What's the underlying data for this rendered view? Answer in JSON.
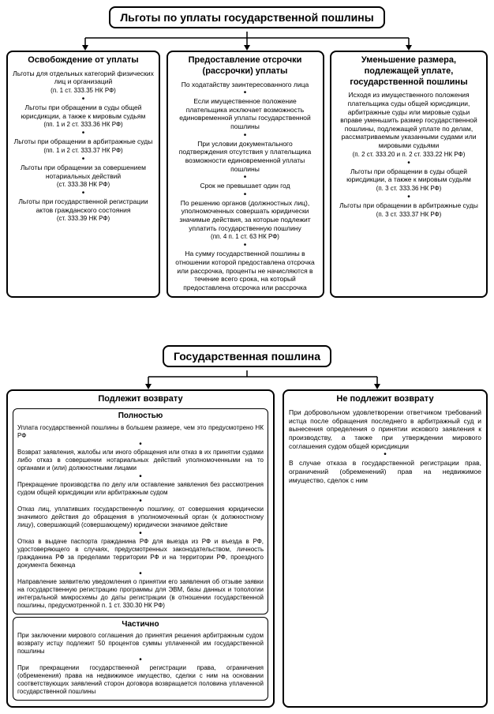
{
  "colors": {
    "stroke": "#000000",
    "bg": "#ffffff"
  },
  "font": {
    "title_size": 14,
    "heading_size": 11,
    "body_size": 8.5,
    "ref_size": 8
  },
  "diagram1": {
    "title": "Льготы по уплаты государственной пошлины",
    "col1": {
      "heading": "Освобождение от уплаты",
      "items": [
        {
          "text": "Льготы для отдельных категорий физических лиц и организаций",
          "ref": "(п. 1 ст. 333.35 НК РФ)"
        },
        {
          "text": "Льготы при обращении в суды общей юрисдикции, а также к мировым судьям",
          "ref": "(пп. 1 и 2 ст. 333.36 НК РФ)"
        },
        {
          "text": "Льготы при обращении в арбитражные суды",
          "ref": "(пп. 1 и 2 ст. 333.37 НК РФ)"
        },
        {
          "text": "Льготы при обращении за совершением нотариальных действий",
          "ref": "(ст. 333.38 НК РФ)"
        },
        {
          "text": "Льготы при государственной регистрации актов гражданского состояния",
          "ref": "(ст. 333.39 НК РФ)"
        }
      ]
    },
    "col2": {
      "heading": "Предоставление отсрочки (рассрочки) уплаты",
      "items": [
        {
          "text": "По ходатайству заинтересованного лица"
        },
        {
          "text": "Если имущественное положение плательщика исключает возможность единовременной уплаты государственной пошлины"
        },
        {
          "text": "При условии документального подтверждения отсутствия у плательщика возможности единовременной уплаты пошлины"
        },
        {
          "text": "Срок не превышает один год"
        },
        {
          "text": "По решению органов (должностных лиц), уполномоченных совершать юридически значимые действия, за которые подлежит уплатить государственную пошлину",
          "ref": "(пп. 4 п. 1 ст. 63 НК РФ)"
        },
        {
          "text": "На сумму государственной пошлины в отношении которой предоставлена отсрочка или рассрочка, проценты не начисляются в течение всего срока, на который предоставлена отсрочка или рассрочка"
        }
      ]
    },
    "col3": {
      "heading": "Уменьшение размера, подлежащей уплате, государственной пошлины",
      "items": [
        {
          "text": "Исходя из имущественного положения плательщика суды общей юрисдикции, арбитражные суды или мировые судьи вправе уменьшить размер государственной пошлины, подлежащей уплате по делам, рассматриваемым указанными судами или мировыми судьями",
          "ref": "(п. 2 ст. 333.20 и п. 2 ст. 333.22 НК РФ)"
        },
        {
          "text": "Льготы при обращении в суды общей юрисдикции, а также к мировым судьям",
          "ref": "(п. 3 ст. 333.36 НК РФ)"
        },
        {
          "text": "Льготы при обращении в арбитражные суды",
          "ref": "(п. 3 ст. 333.37 НК РФ)"
        }
      ]
    }
  },
  "diagram2": {
    "title": "Государственная пошлина",
    "col1": {
      "heading": "Подлежит возврату",
      "full": {
        "heading": "Полностью",
        "items": [
          "Уплата государственной пошлины в большем размере, чем это предусмотрено НК РФ",
          "Возврат заявления, жалобы или иного обращения или отказ в их принятии судами либо отказ в совершении нотариальных действий уполномоченными на то органами и (или) должностными лицами",
          "Прекращение производства по делу или оставление заявления без рассмотрения судом общей юрисдикции или арбитражным судом",
          "Отказ лиц, уплативших государственную пошлину, от совершения юридически значимого действия до обращения в уполномоченный орган (к должностному лицу), совершающий (совершающему) юридически значимое действие",
          "Отказ в выдаче паспорта гражданина РФ для выезда из РФ и въезда в РФ, удостоверяющего в случаях, предусмотренных законодательством, личность гражданина РФ за пределами территории РФ и на территории РФ, проездного документа беженца",
          "Направление заявителю уведомления о принятии его заявления об отзыве заявки на государственную регистрацию программы для ЭВМ, базы данных и топологии интегральной микросхемы до даты регистрации (в отношении государственной пошлины, предусмотренной п. 1 ст. 330.30 НК РФ)"
        ]
      },
      "partial": {
        "heading": "Частично",
        "items": [
          "При заключении мирового соглашения до принятия решения арбитражным судом возврату истцу подлежит 50 процентов суммы уплаченной им государственной пошлины",
          "При прекращении государственной регистрации права, ограничения (обременения) права на недвижимое имущество, сделки с ним на основании соответствующих заявлений сторон договора возвращается половина уплаченной государственной пошлины"
        ]
      }
    },
    "col2": {
      "heading": "Не подлежит возврату",
      "items": [
        "При добровольном удовлетворении ответчиком требований истца после обращения последнего в арбитражный суд и вынесения определения о принятии искового заявления к производству, а также при утверждении мирового соглашения судом общей юрисдикции",
        "В случае отказа в государственной регистрации прав, ограничений (обременений) прав на недвижимое имущество, сделок с ним"
      ]
    }
  }
}
